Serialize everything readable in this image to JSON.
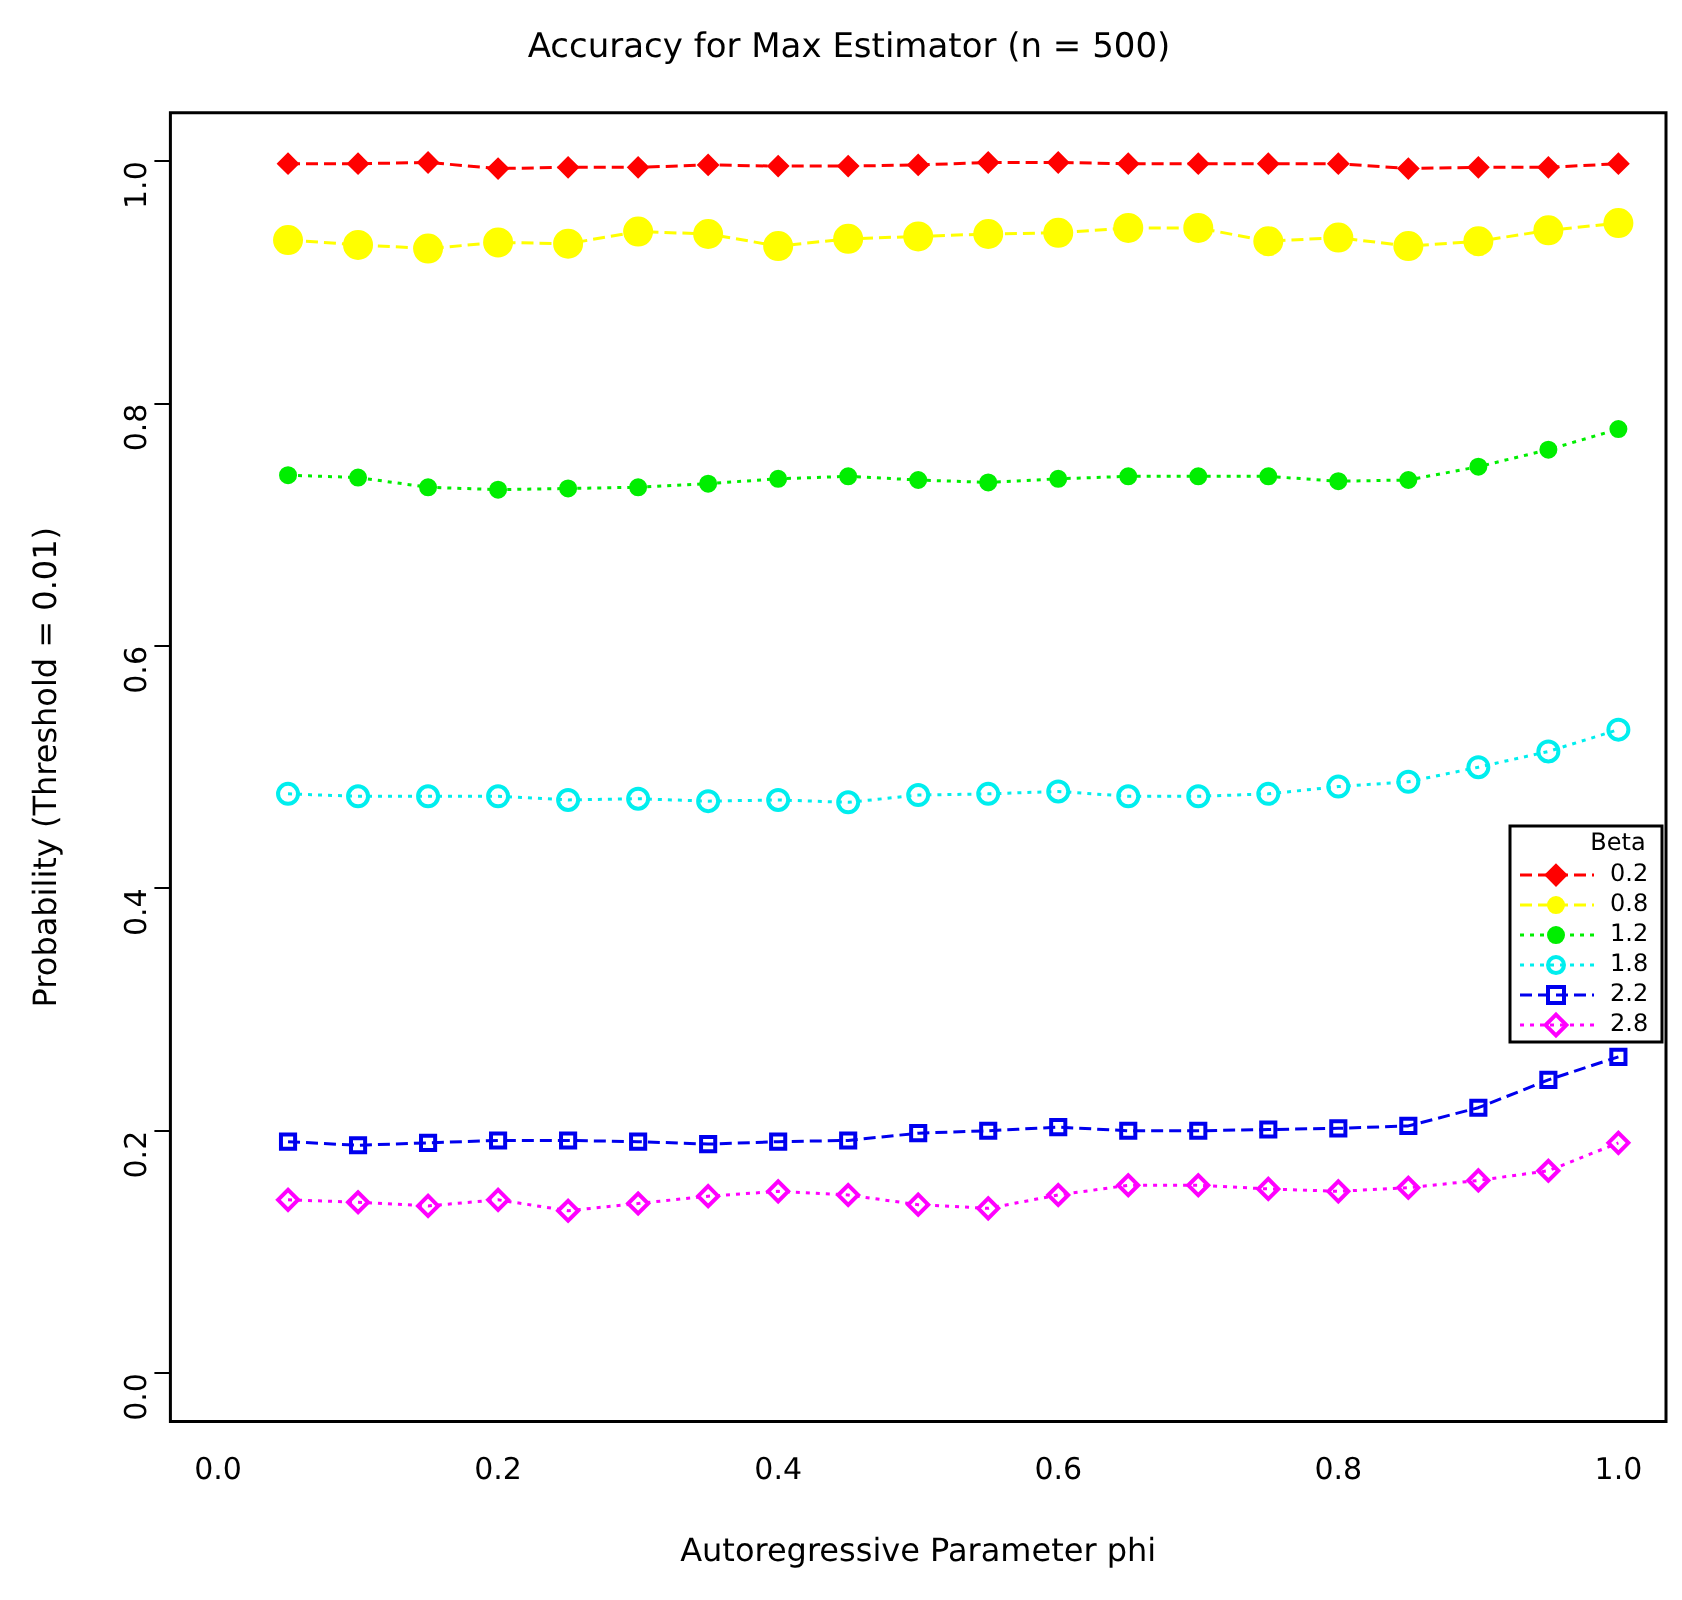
{
  "chart_data": {
    "type": "line",
    "title": "Accuracy for Max Estimator (n = 500)",
    "xlabel": "Autoregressive Parameter phi",
    "ylabel": "Probability (Threshold = 0.01)",
    "legend_title": "Beta",
    "legend": "right",
    "grid": false,
    "x": [
      0.05,
      0.1,
      0.15,
      0.2,
      0.25,
      0.3,
      0.35,
      0.4,
      0.45,
      0.5,
      0.55,
      0.6,
      0.65,
      0.7,
      0.75,
      0.8,
      0.85,
      0.9,
      0.95,
      1.0
    ],
    "xlim": [
      -0.034,
      1.034
    ],
    "xticks": [
      {
        "value": 0,
        "label": "0.0"
      },
      0.2,
      0.4,
      0.6,
      0.8,
      {
        "value": 1,
        "label": "1.0"
      }
    ],
    "ylim": [
      -0.04,
      1.04
    ],
    "yticks": [
      {
        "value": 0,
        "label": "0.0"
      },
      0.2,
      0.4,
      0.6,
      0.8,
      {
        "value": 1,
        "label": "1.0"
      }
    ],
    "series": [
      {
        "name": "0.2",
        "color": "#ff0000",
        "marker": "diamond",
        "line_style": "dashed",
        "values": [
          0.998,
          0.998,
          0.999,
          0.994,
          0.995,
          0.995,
          0.997,
          0.996,
          0.996,
          0.997,
          0.999,
          0.999,
          0.998,
          0.998,
          0.998,
          0.998,
          0.994,
          0.995,
          0.995,
          0.998
        ]
      },
      {
        "name": "0.8",
        "color": "#ffff00",
        "marker": "circle",
        "line_style": "dashed",
        "values": [
          0.935,
          0.931,
          0.928,
          0.933,
          0.932,
          0.942,
          0.94,
          0.93,
          0.936,
          0.938,
          0.94,
          0.941,
          0.945,
          0.945,
          0.934,
          0.937,
          0.93,
          0.934,
          0.943,
          0.949
        ]
      },
      {
        "name": "1.2",
        "color": "#00ee00",
        "marker": "circle",
        "line_style": "dotted",
        "values": [
          0.741,
          0.739,
          0.731,
          0.729,
          0.73,
          0.731,
          0.734,
          0.738,
          0.74,
          0.737,
          0.735,
          0.738,
          0.74,
          0.74,
          0.74,
          0.736,
          0.737,
          0.748,
          0.762,
          0.779
        ]
      },
      {
        "name": "1.8",
        "color": "#00eeee",
        "marker": "circle",
        "line_style": "dotted",
        "values": [
          0.478,
          0.476,
          0.476,
          0.476,
          0.473,
          0.474,
          0.472,
          0.473,
          0.471,
          0.477,
          0.478,
          0.48,
          0.476,
          0.476,
          0.478,
          0.484,
          0.488,
          0.5,
          0.513,
          0.531
        ]
      },
      {
        "name": "2.2",
        "color": "#0000ee",
        "marker": "square",
        "line_style": "dashed",
        "values": [
          0.191,
          0.188,
          0.19,
          0.192,
          0.192,
          0.191,
          0.189,
          0.191,
          0.192,
          0.198,
          0.2,
          0.203,
          0.2,
          0.2,
          0.201,
          0.202,
          0.204,
          0.219,
          0.242,
          0.261
        ]
      },
      {
        "name": "2.8",
        "color": "#ff00ff",
        "marker": "diamond",
        "line_style": "dotted",
        "values": [
          0.143,
          0.141,
          0.138,
          0.143,
          0.134,
          0.14,
          0.146,
          0.15,
          0.147,
          0.139,
          0.136,
          0.147,
          0.155,
          0.155,
          0.152,
          0.15,
          0.153,
          0.159,
          0.167,
          0.19
        ]
      }
    ]
  }
}
